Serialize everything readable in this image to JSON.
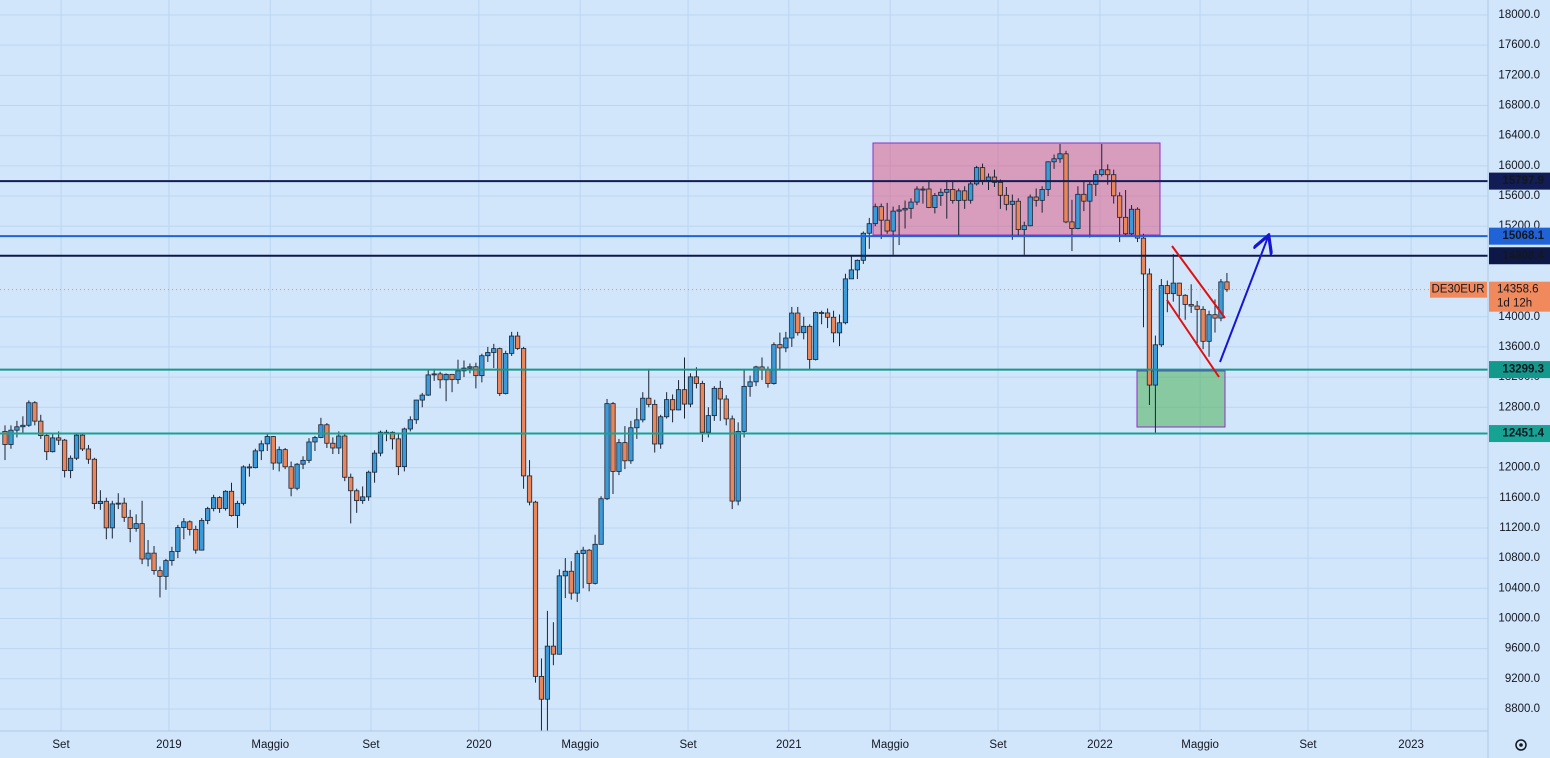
{
  "chart_data": {
    "type": "candlestick",
    "ohlc": [
      [
        12480,
        12560,
        12100,
        12306
      ],
      [
        12306,
        12560,
        12250,
        12496
      ],
      [
        12496,
        12620,
        12400,
        12541
      ],
      [
        12541,
        12680,
        12450,
        12561
      ],
      [
        12561,
        12890,
        12540,
        12860
      ],
      [
        12860,
        12880,
        12560,
        12616
      ],
      [
        12616,
        12700,
        12380,
        12424
      ],
      [
        12424,
        12450,
        12100,
        12211
      ],
      [
        12211,
        12440,
        12200,
        12394
      ],
      [
        12394,
        12480,
        12300,
        12364
      ],
      [
        12364,
        12380,
        11870,
        11960
      ],
      [
        11960,
        12160,
        11860,
        12124
      ],
      [
        12124,
        12460,
        12100,
        12430
      ],
      [
        12430,
        12460,
        12220,
        12247
      ],
      [
        12247,
        12300,
        12050,
        12111
      ],
      [
        12111,
        12130,
        11450,
        11523
      ],
      [
        11523,
        11700,
        11440,
        11553
      ],
      [
        11553,
        11600,
        11050,
        11201
      ],
      [
        11201,
        11560,
        11060,
        11519
      ],
      [
        11519,
        11660,
        11450,
        11529
      ],
      [
        11529,
        11600,
        11280,
        11341
      ],
      [
        11341,
        11440,
        11010,
        11193
      ],
      [
        11193,
        11380,
        11150,
        11257
      ],
      [
        11257,
        11560,
        10720,
        10788
      ],
      [
        10788,
        11040,
        10690,
        10866
      ],
      [
        10866,
        10960,
        10580,
        10634
      ],
      [
        10634,
        10690,
        10279,
        10558
      ],
      [
        10558,
        10790,
        10380,
        10767
      ],
      [
        10767,
        10950,
        10700,
        10888
      ],
      [
        10888,
        11240,
        10800,
        11205
      ],
      [
        11205,
        11330,
        11050,
        11282
      ],
      [
        11282,
        11300,
        11100,
        11181
      ],
      [
        11181,
        11230,
        10860,
        10906
      ],
      [
        10906,
        11330,
        10900,
        11299
      ],
      [
        11299,
        11480,
        11250,
        11457
      ],
      [
        11457,
        11640,
        11420,
        11602
      ],
      [
        11602,
        11620,
        11400,
        11458
      ],
      [
        11458,
        11700,
        11430,
        11686
      ],
      [
        11686,
        11800,
        11350,
        11364
      ],
      [
        11364,
        11560,
        11200,
        11526
      ],
      [
        11526,
        12030,
        11500,
        12009
      ],
      [
        12009,
        12050,
        11880,
        11999
      ],
      [
        11999,
        12250,
        11990,
        12222
      ],
      [
        12222,
        12360,
        12100,
        12315
      ],
      [
        12315,
        12440,
        12220,
        12412
      ],
      [
        12412,
        12420,
        11970,
        12060
      ],
      [
        12060,
        12280,
        11950,
        12238
      ],
      [
        12238,
        12260,
        11980,
        12011
      ],
      [
        12011,
        12080,
        11620,
        11726
      ],
      [
        11726,
        12060,
        11700,
        12045
      ],
      [
        12045,
        12150,
        11980,
        12096
      ],
      [
        12096,
        12390,
        12060,
        12340
      ],
      [
        12340,
        12420,
        12220,
        12399
      ],
      [
        12399,
        12660,
        12390,
        12568
      ],
      [
        12568,
        12590,
        12260,
        12323
      ],
      [
        12323,
        12400,
        12180,
        12260
      ],
      [
        12260,
        12480,
        12180,
        12419
      ],
      [
        12419,
        12440,
        11820,
        11872
      ],
      [
        11872,
        11920,
        11260,
        11693
      ],
      [
        11693,
        11720,
        11400,
        11562
      ],
      [
        11562,
        11750,
        11520,
        11612
      ],
      [
        11612,
        11960,
        11560,
        11939
      ],
      [
        11939,
        12230,
        11800,
        12192
      ],
      [
        12192,
        12490,
        12150,
        12469
      ],
      [
        12469,
        12500,
        12350,
        12468
      ],
      [
        12468,
        12480,
        12240,
        12381
      ],
      [
        12381,
        12440,
        11900,
        12013
      ],
      [
        12013,
        12530,
        11950,
        12512
      ],
      [
        12512,
        12680,
        12480,
        12634
      ],
      [
        12634,
        12900,
        12580,
        12895
      ],
      [
        12895,
        12990,
        12800,
        12961
      ],
      [
        12961,
        13290,
        12950,
        13229
      ],
      [
        13229,
        13310,
        13150,
        13242
      ],
      [
        13242,
        13270,
        13050,
        13164
      ],
      [
        13164,
        13250,
        12880,
        13236
      ],
      [
        13236,
        13240,
        13000,
        13166
      ],
      [
        13166,
        13430,
        13110,
        13283
      ],
      [
        13283,
        13420,
        13200,
        13319
      ],
      [
        13319,
        13380,
        13250,
        13337
      ],
      [
        13337,
        13390,
        13050,
        13219
      ],
      [
        13219,
        13510,
        13130,
        13483
      ],
      [
        13483,
        13600,
        13400,
        13526
      ],
      [
        13526,
        13640,
        13320,
        13577
      ],
      [
        13577,
        13590,
        12950,
        12982
      ],
      [
        12982,
        13550,
        12970,
        13514
      ],
      [
        13514,
        13800,
        13480,
        13744
      ],
      [
        13744,
        13800,
        13560,
        13579
      ],
      [
        13579,
        13600,
        11720,
        11890
      ],
      [
        11890,
        12100,
        11500,
        11542
      ],
      [
        11542,
        11560,
        9150,
        9232
      ],
      [
        9232,
        9470,
        8256,
        8929
      ],
      [
        8929,
        10100,
        8300,
        9633
      ],
      [
        9633,
        9950,
        9380,
        9526
      ],
      [
        9526,
        10650,
        9520,
        10565
      ],
      [
        10565,
        10800,
        10270,
        10626
      ],
      [
        10626,
        10760,
        10250,
        10336
      ],
      [
        10336,
        10900,
        10220,
        10861
      ],
      [
        10861,
        10950,
        10400,
        10905
      ],
      [
        10905,
        10920,
        10360,
        10465
      ],
      [
        10465,
        11110,
        10450,
        10983
      ],
      [
        10983,
        11620,
        10980,
        11587
      ],
      [
        11587,
        12910,
        11570,
        12848
      ],
      [
        12848,
        12870,
        11650,
        11949
      ],
      [
        11949,
        12380,
        11900,
        12331
      ],
      [
        12331,
        12550,
        11980,
        12090
      ],
      [
        12090,
        12620,
        12050,
        12528
      ],
      [
        12528,
        12790,
        12380,
        12633
      ],
      [
        12633,
        13000,
        12600,
        12920
      ],
      [
        12920,
        13310,
        12800,
        12838
      ],
      [
        12838,
        12900,
        12200,
        12313
      ],
      [
        12313,
        12700,
        12250,
        12674
      ],
      [
        12674,
        13000,
        12650,
        12901
      ],
      [
        12901,
        12970,
        12600,
        12765
      ],
      [
        12765,
        13160,
        12760,
        13033
      ],
      [
        13033,
        13460,
        12650,
        12842
      ],
      [
        12842,
        13250,
        12800,
        13203
      ],
      [
        13203,
        13330,
        13050,
        13116
      ],
      [
        13116,
        13150,
        12340,
        12469
      ],
      [
        12469,
        12800,
        12400,
        12689
      ],
      [
        12689,
        13080,
        12620,
        13051
      ],
      [
        13051,
        13150,
        12620,
        12909
      ],
      [
        12909,
        12960,
        12560,
        12646
      ],
      [
        12646,
        12690,
        11450,
        11556
      ],
      [
        11556,
        12600,
        11500,
        12480
      ],
      [
        12480,
        13300,
        12400,
        13077
      ],
      [
        13077,
        13220,
        12940,
        13137
      ],
      [
        13137,
        13350,
        13080,
        13335
      ],
      [
        13335,
        13460,
        13160,
        13298
      ],
      [
        13298,
        13340,
        13060,
        13114
      ],
      [
        13114,
        13660,
        13100,
        13630
      ],
      [
        13630,
        13790,
        13300,
        13587
      ],
      [
        13587,
        13800,
        13530,
        13718
      ],
      [
        13718,
        14130,
        13600,
        14049
      ],
      [
        14049,
        14130,
        13750,
        13788
      ],
      [
        13788,
        14000,
        13700,
        13873
      ],
      [
        13873,
        13900,
        13310,
        13433
      ],
      [
        13433,
        14070,
        13420,
        14056
      ],
      [
        14056,
        14080,
        13900,
        14050
      ],
      [
        14050,
        14110,
        13850,
        13993
      ],
      [
        13993,
        14080,
        13660,
        13786
      ],
      [
        13786,
        14030,
        13610,
        13920
      ],
      [
        13920,
        14570,
        13900,
        14502
      ],
      [
        14502,
        14800,
        14500,
        14621
      ],
      [
        14621,
        14760,
        14500,
        14748
      ],
      [
        14748,
        15130,
        14700,
        15107
      ],
      [
        15107,
        15310,
        14900,
        15234
      ],
      [
        15234,
        15500,
        15200,
        15459
      ],
      [
        15459,
        15500,
        15030,
        15280
      ],
      [
        15280,
        15510,
        15100,
        15136
      ],
      [
        15136,
        15460,
        14820,
        15400
      ],
      [
        15400,
        15480,
        14950,
        15416
      ],
      [
        15416,
        15540,
        15170,
        15437
      ],
      [
        15437,
        15570,
        15300,
        15520
      ],
      [
        15520,
        15730,
        15480,
        15693
      ],
      [
        15693,
        15730,
        15500,
        15693
      ],
      [
        15693,
        15800,
        15440,
        15448
      ],
      [
        15448,
        15640,
        15370,
        15607
      ],
      [
        15607,
        15700,
        15470,
        15650
      ],
      [
        15650,
        15810,
        15300,
        15688
      ],
      [
        15688,
        15800,
        15500,
        15540
      ],
      [
        15540,
        15700,
        15070,
        15669
      ],
      [
        15669,
        15730,
        15430,
        15544
      ],
      [
        15544,
        15810,
        15500,
        15761
      ],
      [
        15761,
        16000,
        15740,
        15977
      ],
      [
        15977,
        16030,
        15750,
        15808
      ],
      [
        15808,
        15900,
        15680,
        15852
      ],
      [
        15852,
        15950,
        15720,
        15781
      ],
      [
        15781,
        15820,
        15430,
        15610
      ],
      [
        15610,
        15720,
        15410,
        15490
      ],
      [
        15490,
        15620,
        15020,
        15531
      ],
      [
        15531,
        15570,
        15070,
        15156
      ],
      [
        15156,
        15260,
        14820,
        15206
      ],
      [
        15206,
        15620,
        15200,
        15587
      ],
      [
        15587,
        15700,
        15460,
        15543
      ],
      [
        15543,
        15730,
        15380,
        15688
      ],
      [
        15688,
        16060,
        15600,
        16054
      ],
      [
        16054,
        16150,
        15960,
        16094
      ],
      [
        16094,
        16290,
        16040,
        16160
      ],
      [
        16160,
        16200,
        15240,
        15257
      ],
      [
        15257,
        15550,
        14870,
        15169
      ],
      [
        15169,
        15730,
        15160,
        15623
      ],
      [
        15623,
        15790,
        15400,
        15532
      ],
      [
        15532,
        15800,
        15050,
        15756
      ],
      [
        15756,
        15940,
        15600,
        15885
      ],
      [
        15885,
        16290,
        15860,
        15948
      ],
      [
        15948,
        16020,
        15750,
        15883
      ],
      [
        15883,
        15950,
        15500,
        15603
      ],
      [
        15603,
        15650,
        14990,
        15318
      ],
      [
        15318,
        15680,
        15070,
        15100
      ],
      [
        15100,
        15480,
        15060,
        15425
      ],
      [
        15425,
        15450,
        14990,
        15042
      ],
      [
        15042,
        15100,
        13860,
        14567
      ],
      [
        14567,
        14640,
        12830,
        13094
      ],
      [
        13094,
        13750,
        12440,
        13628
      ],
      [
        13628,
        14500,
        13600,
        14413
      ],
      [
        14413,
        14480,
        14060,
        14306
      ],
      [
        14306,
        14830,
        14200,
        14446
      ],
      [
        14446,
        14450,
        14000,
        14284
      ],
      [
        14284,
        14300,
        13960,
        14163
      ],
      [
        14163,
        14430,
        14050,
        14142
      ],
      [
        14142,
        14210,
        13650,
        14098
      ],
      [
        14098,
        14140,
        13570,
        13674
      ],
      [
        13674,
        14080,
        13470,
        14027
      ],
      [
        14027,
        14230,
        13790,
        13982
      ],
      [
        13982,
        14500,
        13940,
        14462
      ],
      [
        14462,
        14580,
        14330,
        14358.6
      ]
    ],
    "up_color": "#3b9ad9",
    "down_color": "#e9865c",
    "xlim": [
      -0.84,
      248.8
    ],
    "ylim": [
      8508,
      18199
    ],
    "grid": true,
    "xticks": [
      {
        "value": 9.4,
        "label": "Set"
      },
      {
        "value": 27.5,
        "label": "2019"
      },
      {
        "value": 44.5,
        "label": "Maggio"
      },
      {
        "value": 61.4,
        "label": "Set"
      },
      {
        "value": 79.5,
        "label": "2020"
      },
      {
        "value": 96.5,
        "label": "Maggio"
      },
      {
        "value": 114.6,
        "label": "Set"
      },
      {
        "value": 131.5,
        "label": "2021"
      },
      {
        "value": 148.5,
        "label": "Maggio"
      },
      {
        "value": 166.6,
        "label": "Set"
      },
      {
        "value": 183.7,
        "label": "2022"
      },
      {
        "value": 200.5,
        "label": "Maggio"
      },
      {
        "value": 218.6,
        "label": "Set"
      },
      {
        "value": 235.9,
        "label": "2023"
      }
    ],
    "yticks": [
      {
        "value": 18000,
        "label": "18000.0"
      },
      {
        "value": 17600,
        "label": "17600.0"
      },
      {
        "value": 17200,
        "label": "17200.0"
      },
      {
        "value": 16800,
        "label": "16800.0"
      },
      {
        "value": 16400,
        "label": "16400.0"
      },
      {
        "value": 16000,
        "label": "16000.0"
      },
      {
        "value": 15600,
        "label": "15600.0"
      },
      {
        "value": 15200,
        "label": "15200.0"
      },
      {
        "value": 14000,
        "label": "14000.0"
      },
      {
        "value": 13600,
        "label": "13600.0"
      },
      {
        "value": 13200,
        "label": "13200.0"
      },
      {
        "value": 12800,
        "label": "12800.0"
      },
      {
        "value": 12000,
        "label": "12000.0"
      },
      {
        "value": 11600,
        "label": "11600.0"
      },
      {
        "value": 11200,
        "label": "11200.0"
      },
      {
        "value": 10800,
        "label": "10800.0"
      },
      {
        "value": 10400,
        "label": "10400.0"
      },
      {
        "value": 10000,
        "label": "10000.0"
      },
      {
        "value": 9600,
        "label": "9600.0"
      },
      {
        "value": 9200,
        "label": "9200.0"
      },
      {
        "value": 8800,
        "label": "8800.0"
      }
    ],
    "hlines": [
      {
        "value": 15797.9,
        "color": "#121c55"
      },
      {
        "value": 15068.1,
        "color": "#1f63d6"
      },
      {
        "value": 14808.4,
        "color": "#0e1846"
      },
      {
        "value": 13299.3,
        "color": "#12998b"
      },
      {
        "value": 12451.4,
        "color": "#16a394"
      }
    ],
    "last_price": {
      "symbol": "DE30EUR",
      "countdown": "1d 12h",
      "color": "#f08a5d"
    }
  }
}
